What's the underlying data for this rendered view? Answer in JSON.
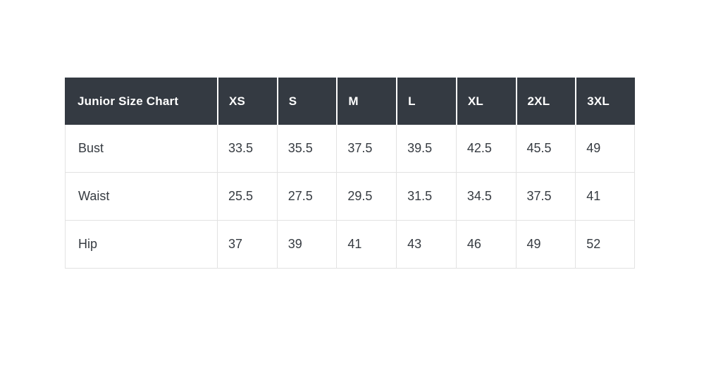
{
  "table": {
    "title": "Junior Size Chart",
    "columns": [
      "XS",
      "S",
      "M",
      "L",
      "XL",
      "2XL",
      "3XL"
    ],
    "rows": [
      {
        "label": "Bust",
        "values": [
          "33.5",
          "35.5",
          "37.5",
          "39.5",
          "42.5",
          "45.5",
          "49"
        ]
      },
      {
        "label": "Waist",
        "values": [
          "25.5",
          "27.5",
          "29.5",
          "31.5",
          "34.5",
          "37.5",
          "41"
        ]
      },
      {
        "label": "Hip",
        "values": [
          "37",
          "39",
          "41",
          "43",
          "46",
          "49",
          "52"
        ]
      }
    ],
    "colors": {
      "header_bg": "#343a42",
      "header_text": "#ffffff",
      "body_text": "#363b41",
      "border": "#e2e2e2",
      "header_separator": "#ffffff",
      "page_bg": "#ffffff"
    }
  },
  "chart_data": {
    "type": "table",
    "title": "Junior Size Chart",
    "categories": [
      "XS",
      "S",
      "M",
      "L",
      "XL",
      "2XL",
      "3XL"
    ],
    "series": [
      {
        "name": "Bust",
        "values": [
          33.5,
          35.5,
          37.5,
          39.5,
          42.5,
          45.5,
          49
        ]
      },
      {
        "name": "Waist",
        "values": [
          25.5,
          27.5,
          29.5,
          31.5,
          34.5,
          37.5,
          41
        ]
      },
      {
        "name": "Hip",
        "values": [
          37,
          39,
          41,
          43,
          46,
          49,
          52
        ]
      }
    ]
  }
}
